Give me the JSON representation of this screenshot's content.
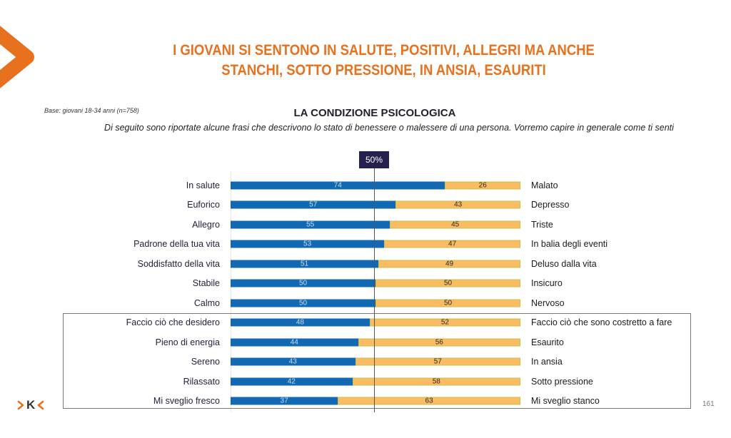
{
  "header": {
    "title_line1": "I GIOVANI SI SENTONO IN SALUTE, POSITIVI, ALLEGRI MA ANCHE",
    "title_line2": "STANCHI, SOTTO PRESSIONE, IN ANSIA, ESAURITI"
  },
  "base_note": "Base: giovani 18-34 anni (n=758)",
  "page_number": "161",
  "logo": {
    "text": "K"
  },
  "colors": {
    "brand_orange": "#E8711E",
    "positive_bar": "#1269B3",
    "negative_bar": "#FBBB62",
    "marker_bg": "#24214F"
  },
  "chart_data": {
    "type": "bar",
    "orientation": "horizontal-stacked-100",
    "title": "LA CONDIZIONE PSICOLOGICA",
    "subtitle": "Di seguito sono riportate alcune frasi che descrivono lo stato di benessere o malessere di una persona. Vorremo capire in generale come ti senti",
    "reference_line": {
      "value": 50,
      "label": "50%"
    },
    "xlim": [
      0,
      100
    ],
    "highlight_group_start_index": 7,
    "categories_left": [
      "In  salute",
      "Euforico",
      "Allegro",
      "Padrone della tua vita",
      "Soddisfatto della vita",
      "Stabile",
      "Calmo",
      "Faccio ciò che desidero",
      "Pieno di energia",
      "Sereno",
      "Rilassato",
      "Mi sveglio fresco"
    ],
    "categories_right": [
      "Malato",
      "Depresso",
      "Triste",
      "In balia degli eventi",
      "Deluso dalla vita",
      "Insicuro",
      "Nervoso",
      "Faccio ciò che sono costretto a fare",
      "Esaurito",
      "In ansia",
      "Sotto pressione",
      "Mi sveglio stanco"
    ],
    "series": [
      {
        "name": "positive",
        "values": [
          74,
          57,
          55,
          53,
          51,
          50,
          50,
          48,
          44,
          43,
          42,
          37
        ]
      },
      {
        "name": "negative",
        "values": [
          26,
          43,
          45,
          47,
          49,
          50,
          50,
          52,
          56,
          57,
          58,
          63
        ]
      }
    ]
  }
}
